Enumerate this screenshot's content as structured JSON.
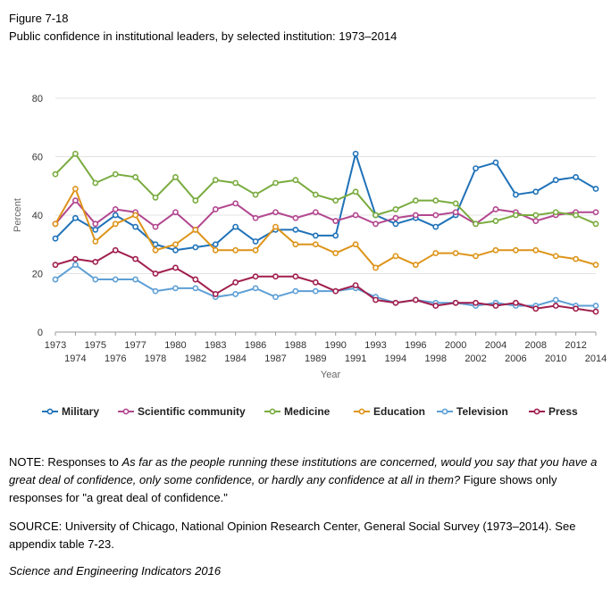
{
  "figure_label": "Figure 7-18",
  "figure_title": "Public confidence in institutional leaders, by selected institution: 1973–2014",
  "note": {
    "prefix": "NOTE: Responses to ",
    "question": "As far as the people running these institutions are concerned, would you say that you have a great deal of confidence, only some confidence, or hardly any confidence at all in them?",
    "suffix": " Figure shows only responses for \"a great deal of confidence.\""
  },
  "source": "SOURCE: University of Chicago, National Opinion Research Center, General Social Survey (1973–2014). See appendix table 7-23.",
  "credit": "Science and Engineering Indicators 2016",
  "chart_data": {
    "type": "line",
    "title": "Public confidence in institutional leaders, by selected institution: 1973–2014",
    "xlabel": "Year",
    "ylabel": "Percent",
    "ylim": [
      0,
      80
    ],
    "yticks": [
      "0",
      "20",
      "40",
      "60",
      "80"
    ],
    "grid": "horizontal",
    "legend_position": "bottom",
    "x": [
      "1973",
      "1974",
      "1975",
      "1976",
      "1977",
      "1978",
      "1980",
      "1982",
      "1983",
      "1984",
      "1986",
      "1987",
      "1988",
      "1989",
      "1990",
      "1991",
      "1993",
      "1994",
      "1996",
      "1998",
      "2000",
      "2002",
      "2004",
      "2006",
      "2008",
      "2010",
      "2012",
      "2014"
    ],
    "x_label_row": [
      "top",
      "bottom",
      "top",
      "bottom",
      "top",
      "bottom",
      "top",
      "bottom",
      "top",
      "bottom",
      "top",
      "bottom",
      "top",
      "bottom",
      "top",
      "bottom",
      "top",
      "bottom",
      "top",
      "bottom",
      "top",
      "bottom",
      "top",
      "bottom",
      "top",
      "bottom",
      "top",
      "bottom"
    ],
    "series": [
      {
        "name": "Military",
        "color": "#1f72b8",
        "values": [
          32,
          39,
          35,
          40,
          36,
          30,
          28,
          29,
          30,
          36,
          31,
          35,
          35,
          33,
          33,
          61,
          40,
          37,
          39,
          36,
          40,
          56,
          58,
          47,
          48,
          52,
          53,
          49
        ]
      },
      {
        "name": "Scientific community",
        "color": "#b2478f",
        "values": [
          37,
          45,
          37,
          42,
          41,
          36,
          41,
          35,
          42,
          44,
          39,
          41,
          39,
          41,
          38,
          40,
          37,
          39,
          40,
          40,
          41,
          37,
          42,
          41,
          38,
          40,
          41,
          41
        ]
      },
      {
        "name": "Medicine",
        "color": "#79ab3f",
        "values": [
          54,
          61,
          51,
          54,
          53,
          46,
          53,
          45,
          52,
          51,
          47,
          51,
          52,
          47,
          45,
          48,
          40,
          42,
          45,
          45,
          44,
          37,
          38,
          40,
          40,
          41,
          40,
          37
        ]
      },
      {
        "name": "Education",
        "color": "#dd9419",
        "values": [
          37,
          49,
          31,
          37,
          40,
          28,
          30,
          35,
          28,
          28,
          28,
          36,
          30,
          30,
          27,
          30,
          22,
          26,
          23,
          27,
          27,
          26,
          28,
          28,
          28,
          26,
          25,
          23
        ]
      },
      {
        "name": "Television",
        "color": "#5e9fd5",
        "values": [
          18,
          23,
          18,
          18,
          18,
          14,
          15,
          15,
          12,
          13,
          15,
          12,
          14,
          14,
          14,
          15,
          12,
          10,
          11,
          10,
          10,
          9,
          10,
          9,
          9,
          11,
          9,
          9
        ]
      },
      {
        "name": "Press",
        "color": "#a01e4d",
        "values": [
          23,
          25,
          24,
          28,
          25,
          20,
          22,
          18,
          13,
          17,
          19,
          19,
          19,
          17,
          14,
          16,
          11,
          10,
          11,
          9,
          10,
          10,
          9,
          10,
          8,
          9,
          8,
          7
        ]
      }
    ]
  }
}
